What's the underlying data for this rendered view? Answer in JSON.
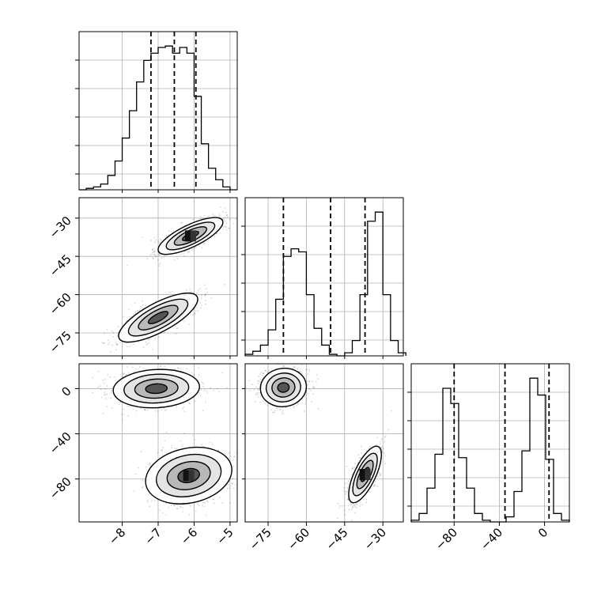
{
  "chart_data": {
    "type": "corner",
    "grid": true,
    "variables": [
      {
        "range": [
          -9.2,
          -4.8
        ],
        "ticks": [
          -8,
          -7,
          -6,
          -5
        ],
        "tick_labels": [
          "−8",
          "−7",
          "−6",
          "−5"
        ],
        "quantiles": [
          -7.2,
          -6.55,
          -5.95
        ]
      },
      {
        "range": [
          -84,
          -22
        ],
        "ticks": [
          -75,
          -60,
          -45,
          -30
        ],
        "tick_labels": [
          "−75",
          "−60",
          "−45",
          "−30"
        ],
        "quantiles": [
          -69,
          -50.5,
          -37
        ]
      },
      {
        "range": [
          -118,
          22
        ],
        "ticks": [
          -80,
          -40,
          0
        ],
        "tick_labels": [
          "−80",
          "−40",
          "0"
        ],
        "quantiles": [
          -80,
          -35,
          4
        ]
      }
    ],
    "histograms": [
      {
        "variable": 0,
        "bins": [
          -9.2,
          -9.0,
          -8.8,
          -8.6,
          -8.4,
          -8.2,
          -8.0,
          -7.8,
          -7.6,
          -7.4,
          -7.2,
          -7.0,
          -6.8,
          -6.6,
          -6.4,
          -6.2,
          -6.0,
          -5.8,
          -5.6,
          -5.4,
          -5.2,
          -5.0,
          -4.8
        ],
        "counts": [
          0,
          1,
          2,
          4,
          10,
          20,
          36,
          55,
          75,
          90,
          95,
          99,
          100,
          95,
          99,
          95,
          65,
          32,
          15,
          7,
          2,
          0
        ]
      },
      {
        "variable": 1,
        "bins": [
          -84,
          -81,
          -78,
          -75,
          -72,
          -69,
          -66,
          -63,
          -60,
          -57,
          -54,
          -51,
          -48,
          -45,
          -42,
          -39,
          -36,
          -33,
          -30,
          -27,
          -24,
          -21
        ],
        "counts": [
          1,
          3,
          7,
          17,
          37,
          65,
          70,
          68,
          40,
          18,
          7,
          1,
          0,
          2,
          10,
          40,
          88,
          94,
          40,
          10,
          2
        ]
      },
      {
        "variable": 2,
        "bins": [
          -118,
          -111,
          -104,
          -97,
          -90,
          -83,
          -76,
          -69,
          -62,
          -55,
          -48,
          -41,
          -34,
          -27,
          -20,
          -13,
          -6,
          1,
          8,
          15,
          22
        ],
        "counts": [
          1,
          5,
          20,
          40,
          79,
          70,
          38,
          20,
          5,
          1,
          0,
          0,
          3,
          18,
          42,
          85,
          75,
          37,
          5,
          1
        ]
      }
    ],
    "scatter_panels": [
      {
        "x_var": 0,
        "y_var": 1,
        "clusters": [
          {
            "mean": [
              -6.1,
              -37
            ],
            "std": [
              0.45,
              3.6
            ],
            "corr": 0.75
          },
          {
            "mean": [
              -7.0,
              -69
            ],
            "std": [
              0.55,
              4.8
            ],
            "corr": 0.75
          }
        ]
      },
      {
        "x_var": 0,
        "y_var": 2,
        "clusters": [
          {
            "mean": [
              -7.05,
              0
            ],
            "std": [
              0.6,
              8.5
            ],
            "corr": 0.1
          },
          {
            "mean": [
              -6.15,
              -77
            ],
            "std": [
              0.6,
              12.5
            ],
            "corr": 0.2
          }
        ]
      },
      {
        "x_var": 1,
        "y_var": 2,
        "clusters": [
          {
            "mean": [
              -69,
              1
            ],
            "std": [
              4.5,
              8.5
            ],
            "corr": 0.05
          },
          {
            "mean": [
              -37,
              -76
            ],
            "std": [
              3.2,
              12.5
            ],
            "corr": 0.7
          }
        ]
      }
    ]
  }
}
